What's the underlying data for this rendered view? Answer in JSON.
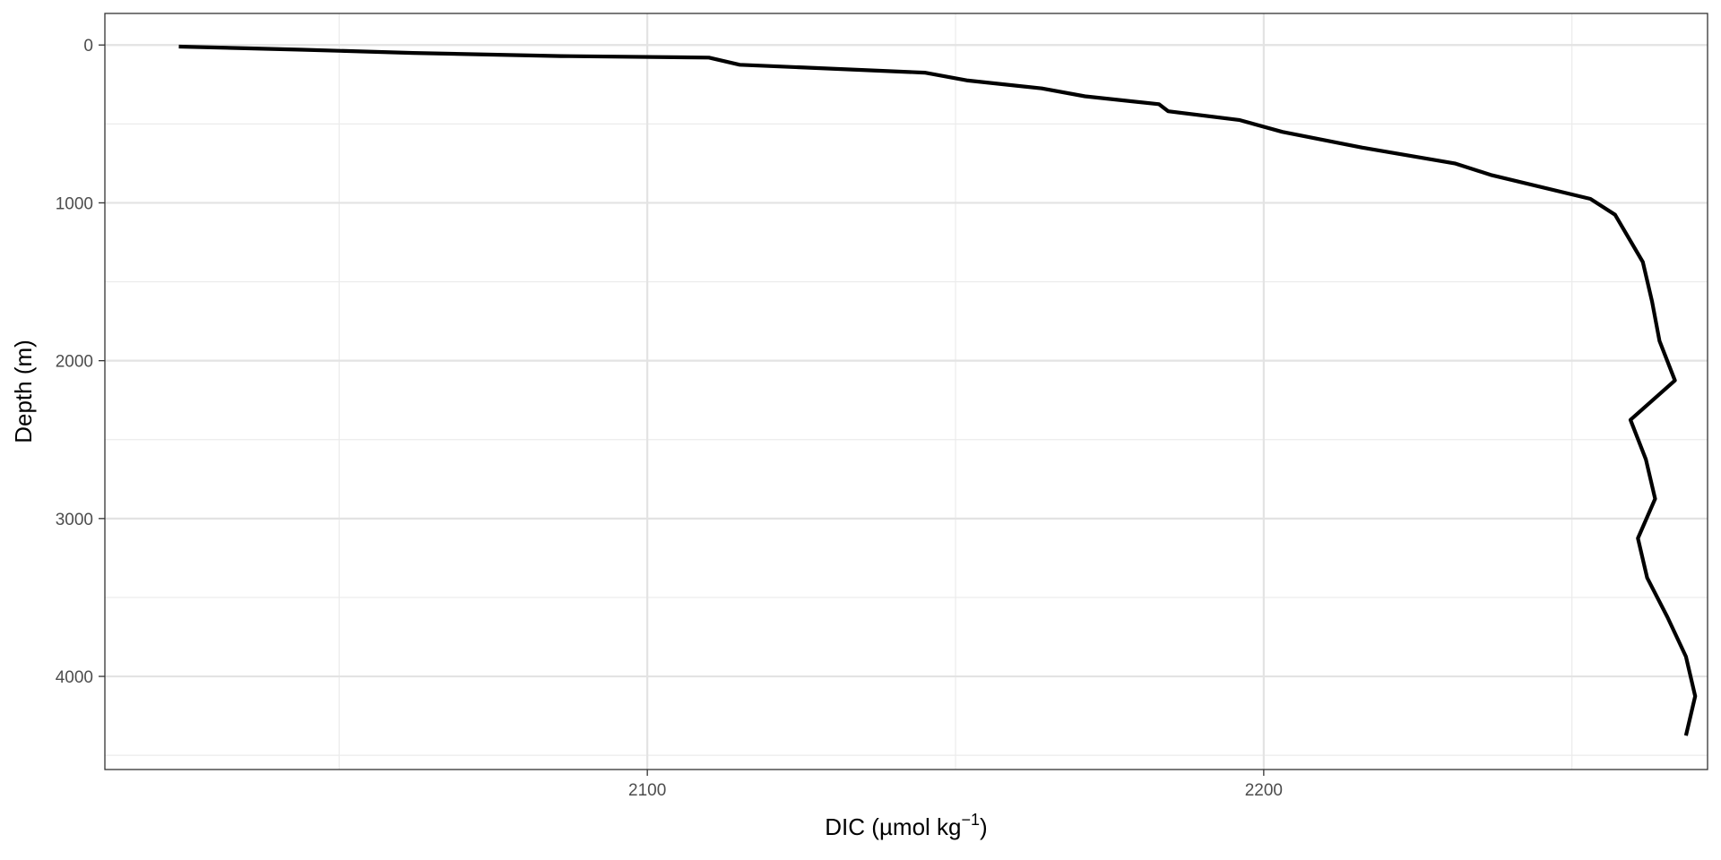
{
  "chart_data": {
    "type": "line",
    "title": "",
    "xlabel_main": "DIC (µmol kg",
    "xlabel_sup": "−1",
    "xlabel_close": ")",
    "ylabel": "Depth (m)",
    "xlim": [
      2012,
      2272
    ],
    "ylim": [
      4590,
      -200
    ],
    "y_reversed": true,
    "x_major_ticks": [
      2100,
      2200
    ],
    "x_minor_ticks": [
      2050,
      2150,
      2250
    ],
    "y_major_ticks": [
      0,
      1000,
      2000,
      3000,
      4000
    ],
    "y_minor_ticks": [
      500,
      1500,
      2500,
      3500,
      4500
    ],
    "x_tick_labels": [
      "2100",
      "2200"
    ],
    "y_tick_labels": [
      "0",
      "1000",
      "2000",
      "3000",
      "4000"
    ],
    "grid": true,
    "legend": "none",
    "line_color": "#000000",
    "series": [
      {
        "x": [
          2024,
          2044,
          2062,
          2086,
          2110,
          2115,
          2145,
          2152,
          2164,
          2171,
          2183,
          2184.5,
          2196,
          2203,
          2216,
          2231,
          2237,
          2253,
          2257,
          2261.5,
          2263,
          2264.2,
          2266.7,
          2259.5,
          2262,
          2263.5,
          2260.7,
          2262.2,
          2265.5,
          2268.5,
          2270,
          2268.5
        ],
        "y": [
          10,
          30,
          50,
          70,
          80,
          125,
          175,
          225,
          275,
          325,
          375,
          420,
          475,
          550,
          650,
          750,
          825,
          975,
          1075,
          1375,
          1625,
          1875,
          2125,
          2375,
          2625,
          2875,
          3125,
          3375,
          3625,
          3875,
          4125,
          4375
        ]
      }
    ]
  }
}
